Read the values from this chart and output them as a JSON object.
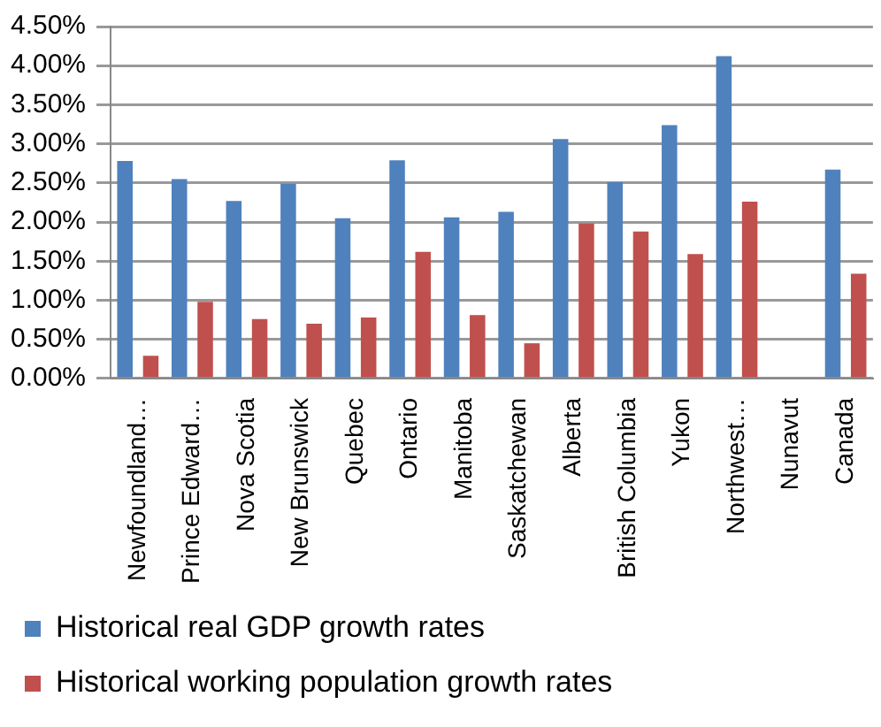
{
  "chart_data": {
    "type": "bar",
    "categories": [
      "Newfoundland…",
      "Prince Edward…",
      "Nova Scotia",
      "New Brunswick",
      "Quebec",
      "Ontario",
      "Manitoba",
      "Saskatchewan",
      "Alberta",
      "British Columbia",
      "Yukon",
      "Northwest…",
      "Nunavut",
      "Canada"
    ],
    "series": [
      {
        "name": "Historical real GDP growth rates",
        "color": "#4f81bd",
        "values": [
          2.78,
          2.55,
          2.27,
          2.49,
          2.05,
          2.79,
          2.06,
          2.13,
          3.06,
          2.51,
          3.24,
          4.12,
          null,
          2.67
        ]
      },
      {
        "name": "Historical working population growth rates",
        "color": "#c0504d",
        "values": [
          0.29,
          0.98,
          0.76,
          0.7,
          0.78,
          1.62,
          0.81,
          0.45,
          1.98,
          1.88,
          1.59,
          2.26,
          null,
          1.34
        ]
      }
    ],
    "ylim": [
      0,
      4.5
    ],
    "yticks": [
      {
        "value": 0,
        "label": "0.00%"
      },
      {
        "value": 0.5,
        "label": "0.50%"
      },
      {
        "value": 1,
        "label": "1.00%"
      },
      {
        "value": 1.5,
        "label": "1.50%"
      },
      {
        "value": 2,
        "label": "2.00%"
      },
      {
        "value": 2.5,
        "label": "2.50%"
      },
      {
        "value": 3,
        "label": "3.00%"
      },
      {
        "value": 3.5,
        "label": "3.50%"
      },
      {
        "value": 4,
        "label": "4.00%"
      },
      {
        "value": 4.5,
        "label": "4.50%"
      }
    ],
    "grid": "y",
    "legend": "bottom"
  }
}
